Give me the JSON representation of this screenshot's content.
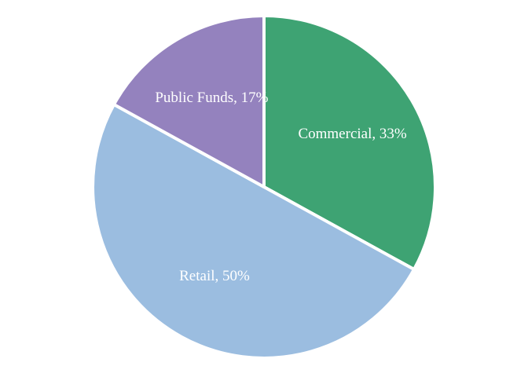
{
  "chart_data": {
    "type": "pie",
    "values": [
      33,
      50,
      17
    ],
    "value_labels": [
      "Commercial, 33%",
      "Retail, 50%",
      "Public Funds, 17%"
    ],
    "colors": [
      "#3ea373",
      "#9bbde0",
      "#9482be"
    ]
  }
}
